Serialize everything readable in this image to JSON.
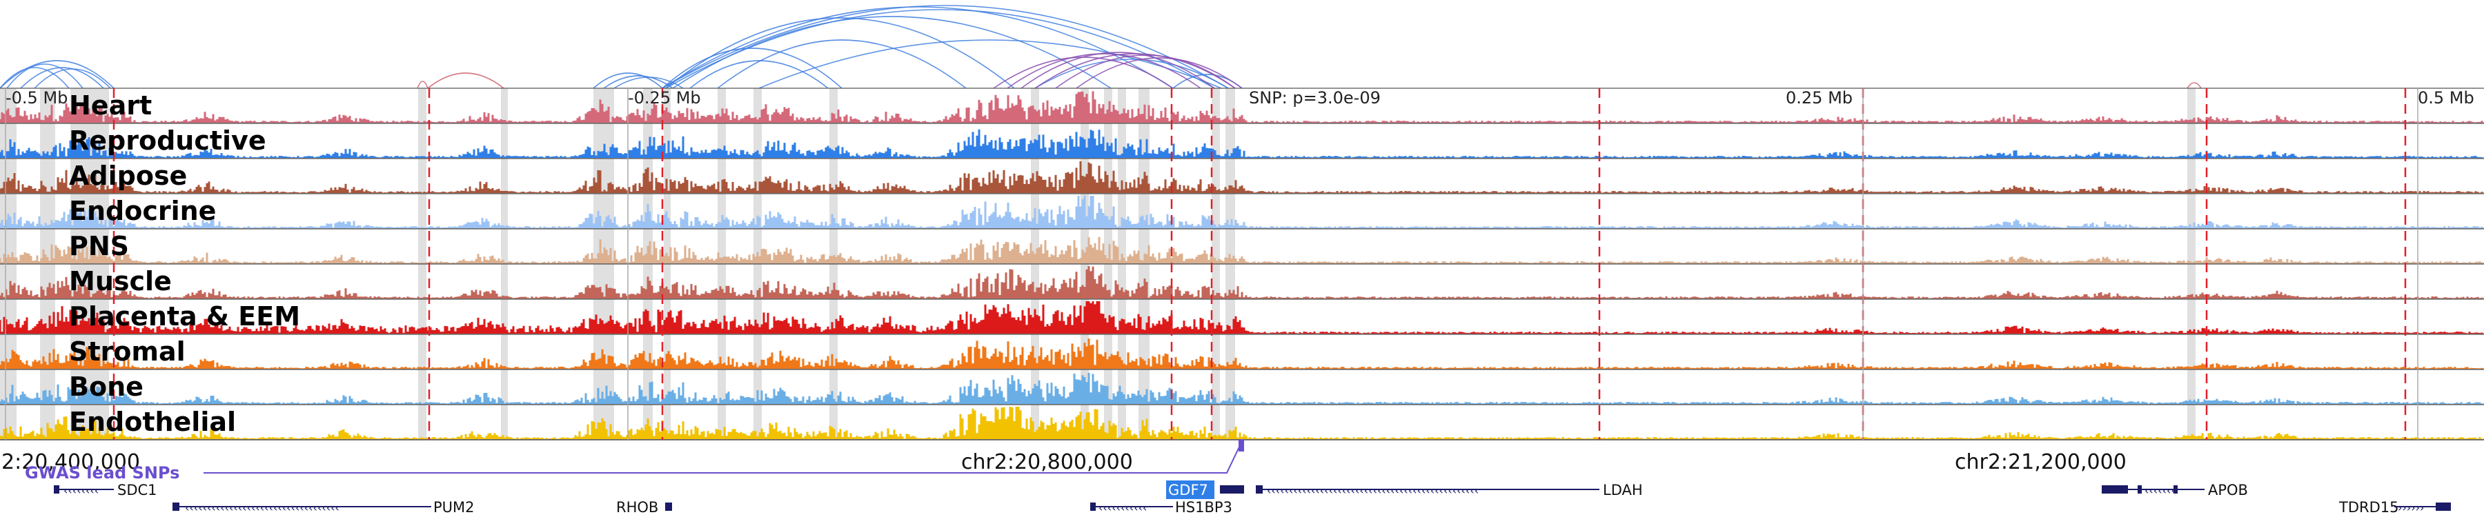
{
  "region": {
    "coords": [
      "2:20,400,000",
      "chr2:20,800,000",
      "chr2:21,200,000"
    ],
    "scale_labels": [
      "-0.5 Mb",
      "-0.25 Mb",
      "0.25 Mb",
      "0.5 Mb"
    ],
    "snp_label": "SNP: p=3.0e-09"
  },
  "tracks": [
    {
      "label": "Heart",
      "color": "#d4697a"
    },
    {
      "label": "Reproductive",
      "color": "#2f7fe8"
    },
    {
      "label": "Adipose",
      "color": "#a9553a"
    },
    {
      "label": "Endocrine",
      "color": "#9cc3f5"
    },
    {
      "label": "PNS",
      "color": "#ddb08f"
    },
    {
      "label": "Muscle",
      "color": "#c36558"
    },
    {
      "label": "Placenta & EEM",
      "color": "#dd1a1a"
    },
    {
      "label": "Stromal",
      "color": "#f07818"
    },
    {
      "label": "Bone",
      "color": "#6aaee6"
    },
    {
      "label": "Endothelial",
      "color": "#f2c200"
    }
  ],
  "gwas": {
    "label": "GWAS lead SNPs",
    "color": "#6a4fcf"
  },
  "genes": [
    {
      "name": "SDC1"
    },
    {
      "name": "PUM2"
    },
    {
      "name": "RHOB"
    },
    {
      "name": "HS1BP3"
    },
    {
      "name": "GDF7",
      "highlight": true
    },
    {
      "name": "LDAH"
    },
    {
      "name": "APOB"
    },
    {
      "name": "TDRD15"
    }
  ],
  "colors": {
    "dashed_line": "#e0202a",
    "highlight_band": "#d6d6d6",
    "gene_body": "#1a1a66",
    "gene_highlight_bg": "#2f7fe8",
    "loop_blue": "#3f7fe0",
    "loop_purple": "#8a4fb0",
    "loop_red": "#d06070"
  }
}
